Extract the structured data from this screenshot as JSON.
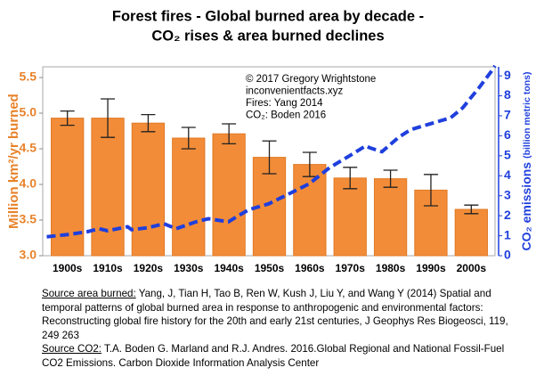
{
  "chart_data": {
    "type": "bar",
    "title": [
      "Forest fires - Global burned area by decade -",
      "CO₂ rises & area burned declines"
    ],
    "ylabel": "Million km²/yr burned",
    "y2label": [
      "CO₂ emissions",
      "(billion metric tons)"
    ],
    "annotation": [
      "© 2017 Gregory Wrightstone",
      "inconvenientfacts.xyz",
      "Fires: Yang 2014",
      "CO₂: Boden 2016"
    ],
    "categories": [
      "1900s",
      "1910s",
      "1920s",
      "1930s",
      "1940s",
      "1950s",
      "1960s",
      "1970s",
      "1980s",
      "1990s",
      "2000s"
    ],
    "values": [
      4.93,
      4.93,
      4.86,
      4.65,
      4.71,
      4.38,
      4.28,
      4.09,
      4.08,
      3.92,
      3.65
    ],
    "errors": [
      0.1,
      0.27,
      0.12,
      0.15,
      0.14,
      0.23,
      0.17,
      0.15,
      0.12,
      0.22,
      0.06
    ],
    "color": "#f28c38",
    "ylim": [
      3,
      5.65
    ],
    "yticks": [
      {
        "value": 3,
        "label": "3.0"
      },
      3.5,
      {
        "value": 4,
        "label": "4.0"
      },
      4.5,
      {
        "value": 5,
        "label": "5.0"
      },
      5.5
    ],
    "y2lim": [
      0,
      9.45
    ],
    "y2ticks": [
      0,
      1,
      2,
      3,
      4,
      5,
      6,
      7,
      8,
      9
    ],
    "xlim": [
      1899,
      2011
    ],
    "series": [
      {
        "type": "line",
        "axis": "y2",
        "color": "#1f3fdd",
        "dashed": true,
        "x": [
          1900,
          1905,
          1910,
          1913,
          1915,
          1920,
          1921,
          1925,
          1929,
          1932,
          1937,
          1940,
          1945,
          1947,
          1950,
          1955,
          1960,
          1965,
          1970,
          1975,
          1979,
          1980,
          1983,
          1987,
          1990,
          1995,
          2000,
          2003,
          2007,
          2010,
          2011
        ],
        "values": [
          0.95,
          1.05,
          1.2,
          1.35,
          1.25,
          1.45,
          1.3,
          1.4,
          1.6,
          1.35,
          1.7,
          1.85,
          1.7,
          1.95,
          2.3,
          2.6,
          3.1,
          3.6,
          4.4,
          5.0,
          5.5,
          5.4,
          5.2,
          5.9,
          6.3,
          6.6,
          6.9,
          7.4,
          8.4,
          9.2,
          9.5
        ]
      }
    ]
  },
  "source": [
    [
      {
        "u": "Source area burned:"
      },
      " Yang, J, Tian H, Tao B, Ren W, Kush J, Liu Y, and Wang Y (2014) Spatial and"
    ],
    [
      "temporal patterns of global burned area in response to anthropogenic and environmental factors:"
    ],
    [
      "Reconstructing global fire history for the 20th and early 21st centuries, J Geophys Res Biogeosci, 119,"
    ],
    [
      "249 263"
    ],
    [
      {
        "u": "Source CO2:"
      },
      " T.A. Boden G. Marland and R.J. Andres. 2016.Global Regional and National Fossil-Fuel"
    ],
    [
      "CO2 Emissions. Carbon Dioxide Information Analysis Center"
    ]
  ]
}
